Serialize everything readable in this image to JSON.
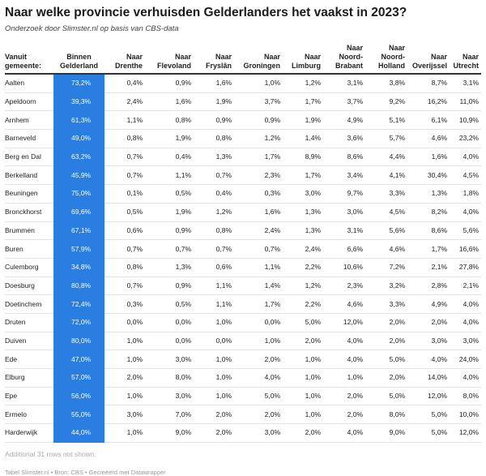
{
  "title": "Naar welke provincie verhuisden Gelderlanders het vaakst in 2023?",
  "subtitle": "Onderzoek door Slimster.nl op basis van CBS-data",
  "footer": "Tabel Slimster.nl • Bron: CBS • Gecreëerd met Datawrapper",
  "more_rows_note": "Additional 31 rows not shown.",
  "colors": {
    "highlight": "#2a7de1"
  },
  "chart_data": {
    "type": "table",
    "columns": [
      [
        "Vanuit",
        "gemeente:"
      ],
      [
        "Binnen",
        "Gelderland"
      ],
      [
        "Naar",
        "Drenthe"
      ],
      [
        "Naar",
        "Flevoland"
      ],
      [
        "Naar",
        "Fryslân"
      ],
      [
        "Naar",
        "Groningen"
      ],
      [
        "Naar",
        "Limburg"
      ],
      [
        "Naar",
        "Noord-",
        "Brabant"
      ],
      [
        "Naar",
        "Noord-",
        "Holland"
      ],
      [
        "Naar",
        "Overijssel"
      ],
      [
        "Naar",
        "Utrecht"
      ]
    ],
    "rows": [
      [
        "Aalten",
        "73,2%",
        "0,4%",
        "0,9%",
        "1,6%",
        "1,0%",
        "1,2%",
        "3,1%",
        "3,8%",
        "8,7%",
        "3,1%"
      ],
      [
        "Apeldoorn",
        "39,3%",
        "2,4%",
        "1,6%",
        "1,9%",
        "3,7%",
        "1,7%",
        "3,7%",
        "9,2%",
        "16,2%",
        "11,0%"
      ],
      [
        "Arnhem",
        "61,3%",
        "1,1%",
        "0,8%",
        "0,9%",
        "0,9%",
        "1,9%",
        "4,9%",
        "5,1%",
        "6,1%",
        "10,9%"
      ],
      [
        "Barneveld",
        "49,0%",
        "0,8%",
        "1,9%",
        "0,8%",
        "1,2%",
        "1,4%",
        "3,6%",
        "5,7%",
        "4,6%",
        "23,2%"
      ],
      [
        "Berg en Dal",
        "63,2%",
        "0,7%",
        "0,4%",
        "1,3%",
        "1,7%",
        "8,9%",
        "8,6%",
        "4,4%",
        "1,6%",
        "4,0%"
      ],
      [
        "Berkelland",
        "45,9%",
        "0,7%",
        "1,1%",
        "0,7%",
        "2,3%",
        "1,7%",
        "3,4%",
        "4,1%",
        "30,4%",
        "4,5%"
      ],
      [
        "Beuningen",
        "75,0%",
        "0,1%",
        "0,5%",
        "0,4%",
        "0,3%",
        "3,0%",
        "9,7%",
        "3,3%",
        "1,3%",
        "1,8%"
      ],
      [
        "Bronckhorst",
        "69,6%",
        "0,5%",
        "1,9%",
        "1,2%",
        "1,6%",
        "1,3%",
        "3,0%",
        "4,5%",
        "8,2%",
        "4,0%"
      ],
      [
        "Brummen",
        "67,1%",
        "0,6%",
        "0,9%",
        "0,8%",
        "2,4%",
        "1,3%",
        "3,1%",
        "5,6%",
        "8,6%",
        "5,6%"
      ],
      [
        "Buren",
        "57,9%",
        "0,7%",
        "0,7%",
        "0,7%",
        "0,7%",
        "2,4%",
        "6,6%",
        "4,6%",
        "1,7%",
        "16,6%"
      ],
      [
        "Culemborg",
        "34,8%",
        "0,8%",
        "1,3%",
        "0,6%",
        "1,1%",
        "2,2%",
        "10,6%",
        "7,2%",
        "2,1%",
        "27,8%"
      ],
      [
        "Doesburg",
        "80,8%",
        "0,7%",
        "0,9%",
        "1,1%",
        "1,4%",
        "1,2%",
        "2,3%",
        "3,2%",
        "2,8%",
        "2,1%"
      ],
      [
        "Doetinchem",
        "72,4%",
        "0,3%",
        "0,5%",
        "1,1%",
        "1,7%",
        "2,2%",
        "4,6%",
        "3,3%",
        "4,9%",
        "4,0%"
      ],
      [
        "Druten",
        "72,0%",
        "0,0%",
        "0,0%",
        "1,0%",
        "0,0%",
        "5,0%",
        "12,0%",
        "2,0%",
        "2,0%",
        "4,0%"
      ],
      [
        "Duiven",
        "80,0%",
        "1,0%",
        "0,0%",
        "0,0%",
        "1,0%",
        "2,0%",
        "4,0%",
        "2,0%",
        "3,0%",
        "3,0%"
      ],
      [
        "Ede",
        "47,0%",
        "1,0%",
        "3,0%",
        "1,0%",
        "2,0%",
        "1,0%",
        "4,0%",
        "5,0%",
        "4,0%",
        "24,0%"
      ],
      [
        "Elburg",
        "57,0%",
        "2,0%",
        "8,0%",
        "1,0%",
        "4,0%",
        "1,0%",
        "1,0%",
        "2,0%",
        "14,0%",
        "4,0%"
      ],
      [
        "Epe",
        "56,0%",
        "1,0%",
        "3,0%",
        "1,0%",
        "5,0%",
        "1,0%",
        "2,0%",
        "5,0%",
        "12,0%",
        "8,0%"
      ],
      [
        "Ermelo",
        "55,0%",
        "3,0%",
        "7,0%",
        "2,0%",
        "2,0%",
        "1,0%",
        "2,0%",
        "8,0%",
        "5,0%",
        "10,0%"
      ],
      [
        "Harderwijk",
        "44,0%",
        "1,0%",
        "9,0%",
        "2,0%",
        "3,0%",
        "2,0%",
        "4,0%",
        "9,0%",
        "5,0%",
        "12,0%"
      ]
    ]
  }
}
